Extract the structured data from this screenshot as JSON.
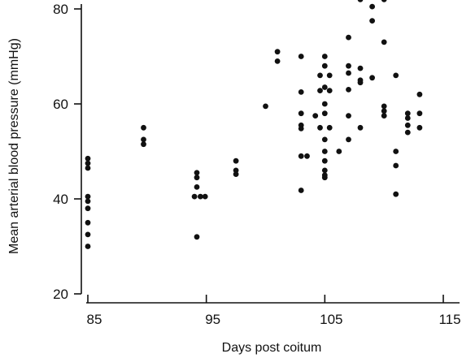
{
  "chart_data": {
    "type": "scatter",
    "xlabel": "Days post coitum",
    "ylabel": "Mean arterial blood pressure (mmHg)",
    "xlim": [
      85,
      115
    ],
    "ylim": [
      20,
      80
    ],
    "xticks": [
      85,
      95,
      105,
      115
    ],
    "yticks": [
      20,
      40,
      60,
      80
    ],
    "marker_color": "#111111",
    "axis_color": "#111111",
    "series": [
      {
        "points": [
          [
            85,
            48.5
          ],
          [
            85,
            47.5
          ],
          [
            85,
            46.5
          ],
          [
            85,
            40.5
          ],
          [
            85,
            39.5
          ],
          [
            85,
            38
          ],
          [
            85,
            35
          ],
          [
            85,
            32.5
          ],
          [
            85,
            30
          ],
          [
            89.7,
            55
          ],
          [
            89.7,
            52.5
          ],
          [
            89.7,
            51.5
          ],
          [
            94.2,
            45.5
          ],
          [
            94.2,
            44.5
          ],
          [
            94.2,
            42.5
          ],
          [
            94,
            40.5
          ],
          [
            94.5,
            40.5
          ],
          [
            94.9,
            40.5
          ],
          [
            94.2,
            32
          ],
          [
            97.5,
            48
          ],
          [
            97.5,
            46
          ],
          [
            97.5,
            45.2
          ],
          [
            100,
            59.5
          ],
          [
            101,
            71
          ],
          [
            101,
            69
          ],
          [
            103,
            70
          ],
          [
            103,
            62.5
          ],
          [
            103,
            58
          ],
          [
            103,
            55.5
          ],
          [
            103,
            54.8
          ],
          [
            103,
            49
          ],
          [
            103.5,
            49
          ],
          [
            103,
            41.8
          ],
          [
            104.2,
            57.5
          ],
          [
            105,
            70
          ],
          [
            105,
            68
          ],
          [
            104.6,
            66
          ],
          [
            105.4,
            66
          ],
          [
            105,
            63.5
          ],
          [
            104.6,
            62.8
          ],
          [
            105.4,
            62.8
          ],
          [
            105,
            60
          ],
          [
            105,
            58
          ],
          [
            104.6,
            55
          ],
          [
            105.4,
            55
          ],
          [
            105,
            52.5
          ],
          [
            105,
            50
          ],
          [
            105,
            48
          ],
          [
            105,
            46
          ],
          [
            105,
            45
          ],
          [
            105,
            44.5
          ],
          [
            106.2,
            50
          ],
          [
            107,
            74
          ],
          [
            107,
            68
          ],
          [
            107,
            66.5
          ],
          [
            107,
            63
          ],
          [
            107,
            57.5
          ],
          [
            107,
            52.5
          ],
          [
            108,
            82
          ],
          [
            108,
            67.5
          ],
          [
            108,
            65
          ],
          [
            108,
            64.5
          ],
          [
            108,
            55
          ],
          [
            109,
            80.5
          ],
          [
            109,
            77.5
          ],
          [
            109,
            65.5
          ],
          [
            110,
            82
          ],
          [
            110,
            73
          ],
          [
            110,
            59.5
          ],
          [
            110,
            58.5
          ],
          [
            110,
            57.5
          ],
          [
            111,
            66
          ],
          [
            111,
            50
          ],
          [
            111,
            47
          ],
          [
            111,
            41
          ],
          [
            112,
            58
          ],
          [
            112,
            57
          ],
          [
            112,
            55.5
          ],
          [
            112,
            54
          ],
          [
            113,
            62
          ],
          [
            113,
            58
          ],
          [
            113,
            55
          ]
        ]
      }
    ]
  }
}
